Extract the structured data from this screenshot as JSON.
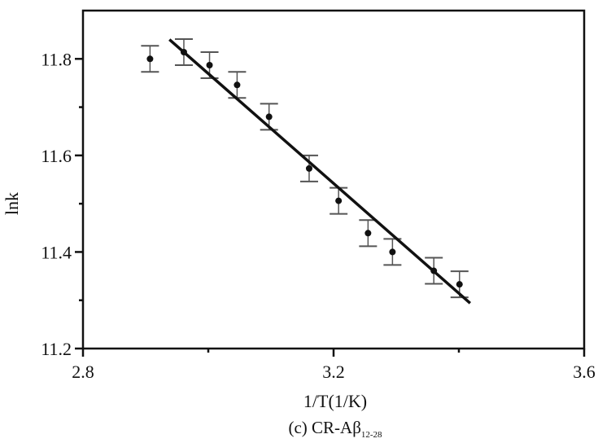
{
  "chart_data": {
    "type": "scatter",
    "xlabel": "1/T(1/K)",
    "ylabel": "lnk",
    "xlim": [
      2.8,
      3.6
    ],
    "ylim": [
      11.2,
      11.9
    ],
    "xticks": [
      2.8,
      3.2,
      3.6
    ],
    "yticks": [
      11.2,
      11.4,
      11.6,
      11.8
    ],
    "xtick_labels": [
      "2.8",
      "3.2",
      "3.6"
    ],
    "ytick_labels": [
      "11.2",
      "11.4",
      "11.6",
      "11.8"
    ],
    "grid": false,
    "caption": {
      "main": "(c) CR-A",
      "greek": "β",
      "subscript": "12-28"
    },
    "points": [
      {
        "x": 2.907,
        "y": 11.8,
        "err": 0.027
      },
      {
        "x": 2.961,
        "y": 11.814,
        "err": 0.027
      },
      {
        "x": 3.002,
        "y": 11.787,
        "err": 0.027
      },
      {
        "x": 3.046,
        "y": 11.746,
        "err": 0.027
      },
      {
        "x": 3.097,
        "y": 11.68,
        "err": 0.027
      },
      {
        "x": 3.161,
        "y": 11.573,
        "err": 0.027
      },
      {
        "x": 3.208,
        "y": 11.506,
        "err": 0.027
      },
      {
        "x": 3.255,
        "y": 11.439,
        "err": 0.027
      },
      {
        "x": 3.294,
        "y": 11.4,
        "err": 0.027
      },
      {
        "x": 3.36,
        "y": 11.361,
        "err": 0.027
      },
      {
        "x": 3.401,
        "y": 11.333,
        "err": 0.027
      }
    ],
    "fit_line": {
      "x": [
        2.938,
        3.418
      ],
      "y": [
        11.84,
        11.294
      ]
    }
  }
}
